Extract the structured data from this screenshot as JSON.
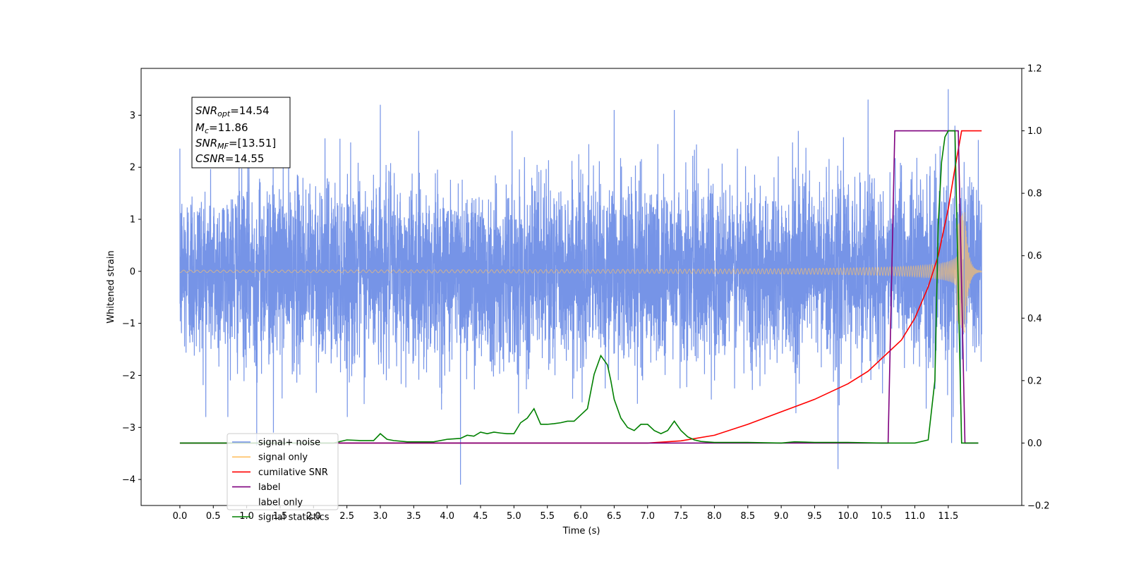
{
  "chart_data": {
    "type": "line",
    "title": "",
    "xlabel": "Time (s)",
    "ylabel": "Whitened strain",
    "ylabel_right": "",
    "xlim": [
      -0.58,
      12.6
    ],
    "ylim": [
      -4.5,
      3.9
    ],
    "ylim_right": [
      -0.2,
      1.2
    ],
    "grid": false,
    "legend_position": "lower-left",
    "x_ticks": [
      "0.0",
      "0.5",
      "1.0",
      "1.5",
      "2.0",
      "2.5",
      "3.0",
      "3.5",
      "4.0",
      "4.5",
      "5.0",
      "5.5",
      "6.0",
      "6.5",
      "7.0",
      "7.5",
      "8.0",
      "8.5",
      "9.0",
      "9.5",
      "10.0",
      "10.5",
      "11.0",
      "11.5"
    ],
    "y_ticks_left": [
      "−4",
      "−3",
      "−2",
      "−1",
      "0",
      "1",
      "2",
      "3"
    ],
    "y_ticks_right": [
      "−0.2",
      "0.0",
      "0.2",
      "0.4",
      "0.6",
      "0.8",
      "1.0",
      "1.2"
    ],
    "annotation": {
      "snr_opt": {
        "main": "SNR",
        "sub": "opt",
        "value": "=14.54"
      },
      "mc": {
        "main": "M",
        "sub": "c",
        "value": "=11.86"
      },
      "snr_mf": {
        "main": "SNR",
        "sub": "MF",
        "value": "=[13.51]"
      },
      "csnr": {
        "main": "CSNR",
        "value": "=14.55"
      }
    },
    "legend": [
      {
        "label": "signal+ noise",
        "color": "#6f8ee6"
      },
      {
        "label": "signal only",
        "color": "#ffc266"
      },
      {
        "label": "cumilative SNR",
        "color": "#ff0000"
      },
      {
        "label": "label",
        "color": "#7f007f"
      },
      {
        "label": "label only",
        "color": "#ffffff"
      },
      {
        "label": "signal statistics",
        "color": "#008000"
      }
    ],
    "series": [
      {
        "name": "signal+ noise",
        "axis": "left",
        "color": "#6f8ee6",
        "style": "noise",
        "x_range": [
          0.0,
          12.0
        ],
        "sigma": 0.85,
        "spikes": [
          [
            1.15,
            -3.35
          ],
          [
            1.4,
            -3.1
          ],
          [
            3.0,
            3.2
          ],
          [
            4.2,
            -4.1
          ],
          [
            6.5,
            3.1
          ],
          [
            7.4,
            3.1
          ],
          [
            9.85,
            -3.8
          ],
          [
            10.3,
            3.3
          ],
          [
            11.5,
            3.5
          ],
          [
            11.55,
            -3.3
          ],
          [
            11.6,
            2.8
          ]
        ]
      },
      {
        "name": "signal only",
        "axis": "left",
        "color": "#ffc266",
        "style": "chirp",
        "x_range": [
          0.0,
          12.0
        ],
        "t_merge": 11.75
      },
      {
        "name": "cumilative SNR",
        "axis": "right",
        "color": "#ff0000",
        "x": [
          0.0,
          7.0,
          7.5,
          8.0,
          8.5,
          9.0,
          9.5,
          10.0,
          10.3,
          10.6,
          10.8,
          11.0,
          11.2,
          11.35,
          11.5,
          11.6,
          11.7,
          12.0
        ],
        "y": [
          0.0,
          0.0,
          0.007,
          0.025,
          0.06,
          0.1,
          0.14,
          0.19,
          0.23,
          0.29,
          0.33,
          0.4,
          0.5,
          0.6,
          0.75,
          0.88,
          1.0,
          1.0
        ]
      },
      {
        "name": "label",
        "axis": "right",
        "color": "#7f007f",
        "x": [
          0.0,
          10.6,
          10.65,
          10.7,
          11.65,
          11.7,
          11.75,
          11.95
        ],
        "y": [
          0.0,
          0.0,
          0.5,
          1.0,
          1.0,
          0.5,
          0.0,
          0.0
        ]
      },
      {
        "name": "signal statistics",
        "axis": "right",
        "color": "#008000",
        "x": [
          0.0,
          2.3,
          2.5,
          2.7,
          2.9,
          3.0,
          3.1,
          3.2,
          3.4,
          3.6,
          3.8,
          4.0,
          4.2,
          4.3,
          4.4,
          4.5,
          4.6,
          4.7,
          4.8,
          4.9,
          5.0,
          5.1,
          5.2,
          5.3,
          5.4,
          5.5,
          5.6,
          5.7,
          5.8,
          5.9,
          6.0,
          6.1,
          6.2,
          6.3,
          6.4,
          6.45,
          6.5,
          6.6,
          6.7,
          6.8,
          6.9,
          7.0,
          7.1,
          7.2,
          7.3,
          7.4,
          7.5,
          7.6,
          7.7,
          7.8,
          8.0,
          8.5,
          9.0,
          9.2,
          9.5,
          10.0,
          10.5,
          11.0,
          11.2,
          11.3,
          11.35,
          11.4,
          11.45,
          11.5,
          11.55,
          11.6,
          11.65,
          11.7,
          11.75,
          11.95
        ],
        "y": [
          0.0,
          0.0,
          0.01,
          0.008,
          0.008,
          0.03,
          0.012,
          0.008,
          0.004,
          0.004,
          0.004,
          0.012,
          0.015,
          0.025,
          0.022,
          0.035,
          0.03,
          0.035,
          0.032,
          0.03,
          0.03,
          0.065,
          0.08,
          0.11,
          0.06,
          0.06,
          0.062,
          0.065,
          0.07,
          0.07,
          0.09,
          0.11,
          0.22,
          0.28,
          0.25,
          0.2,
          0.14,
          0.08,
          0.05,
          0.04,
          0.06,
          0.06,
          0.04,
          0.03,
          0.04,
          0.07,
          0.04,
          0.02,
          0.01,
          0.005,
          0.002,
          0.002,
          0.0,
          0.004,
          0.002,
          0.002,
          0.0,
          0.0,
          0.01,
          0.2,
          0.7,
          0.9,
          0.98,
          1.0,
          1.0,
          1.0,
          0.5,
          0.0,
          0.0,
          0.0
        ]
      }
    ]
  }
}
